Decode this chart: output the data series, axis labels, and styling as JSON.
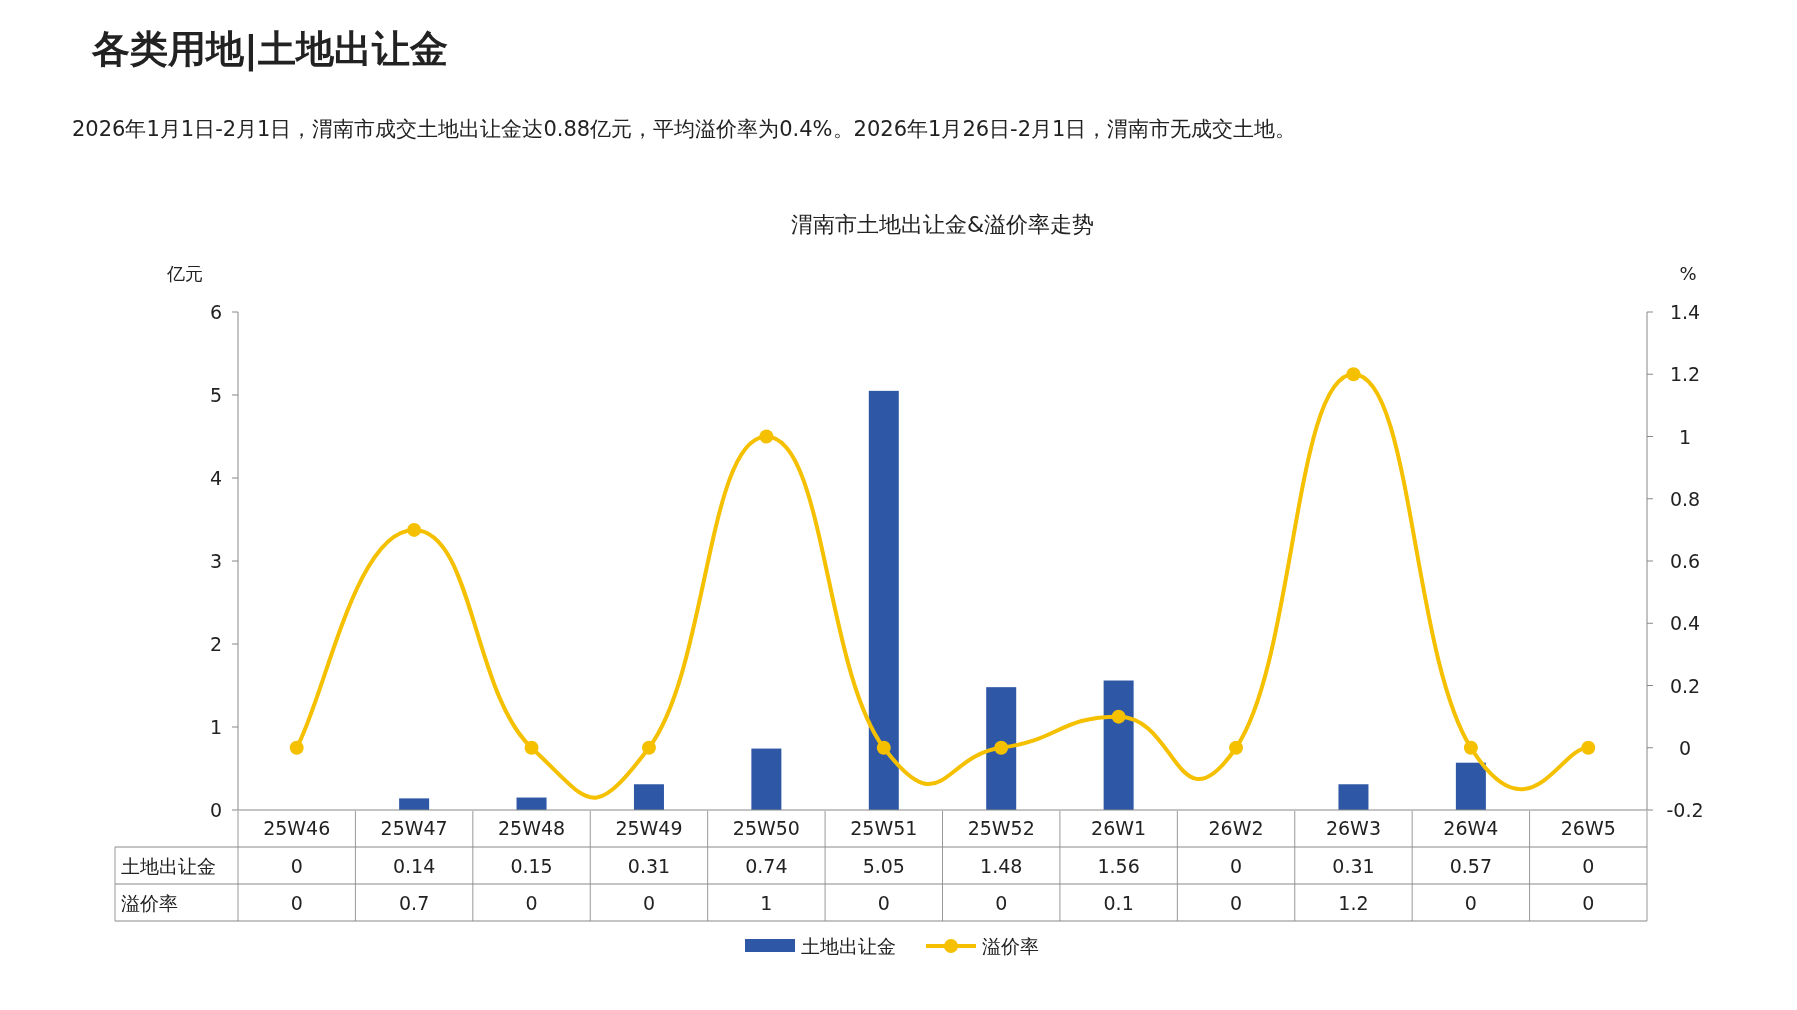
{
  "chart_data": {
    "type": "bar",
    "title": "各类用地|土地出让金",
    "subtitle": "渭南市土地出让金&溢价率走势",
    "annotations": [
      "2026年1月1日-2月1日，渭南市成交土地出让金达0.88亿元，平均溢价率为0.4%。2026年1月26日-2月1日，渭南市无成交土地。"
    ],
    "ylabel": "亿元",
    "y2label": "%",
    "categories": [
      "25W46",
      "25W47",
      "25W48",
      "25W49",
      "25W50",
      "25W51",
      "25W52",
      "26W1",
      "26W2",
      "26W3",
      "26W4",
      "26W5"
    ],
    "series": [
      {
        "name": "土地出让金",
        "color": "#2e58a6",
        "values": [
          0,
          0.14,
          0.15,
          0.31,
          0.74,
          5.05,
          1.48,
          1.56,
          0,
          0.31,
          0.57,
          0
        ]
      },
      {
        "name": "溢价率",
        "type": "line",
        "axis": "y2",
        "color": "#f5c000",
        "marker": "circle",
        "values": [
          0,
          0.7,
          0,
          0,
          1,
          0,
          0,
          0.1,
          0,
          1.2,
          0,
          0
        ]
      }
    ],
    "ylim": [
      0,
      6
    ],
    "yticks": [
      0,
      1,
      2,
      3,
      4,
      5,
      6
    ],
    "y2lim": [
      -0.2,
      1.4
    ],
    "y2ticks": [
      -0.2,
      0,
      0.2,
      0.4,
      0.6,
      0.8,
      1,
      1.2,
      1.4
    ],
    "data_labels": true,
    "legend": "bottom",
    "grid": false
  }
}
